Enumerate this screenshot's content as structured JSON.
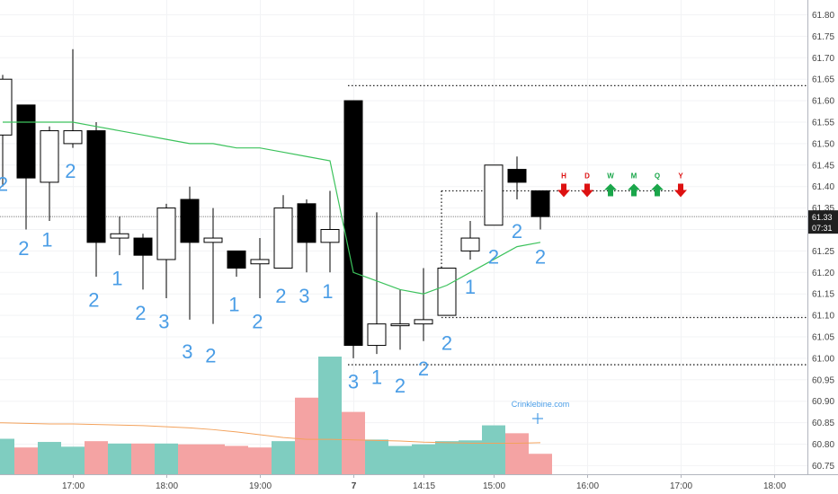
{
  "chart_data": {
    "type": "candlestick",
    "price_range": [
      60.72,
      61.84
    ],
    "y_ticks": [
      61.8,
      61.75,
      61.7,
      61.65,
      61.6,
      61.55,
      61.5,
      61.45,
      61.4,
      61.35,
      61.3,
      61.25,
      61.2,
      61.15,
      61.1,
      61.05,
      61.0,
      60.95,
      60.9,
      60.85,
      60.8,
      60.75
    ],
    "x_ticks": [
      {
        "i": 3,
        "label": "17:00"
      },
      {
        "i": 7,
        "label": "18:00"
      },
      {
        "i": 11,
        "label": "19:00"
      },
      {
        "i": 15,
        "label": "7"
      },
      {
        "i": 18,
        "label": "14:15"
      },
      {
        "i": 21,
        "label": "15:00"
      },
      {
        "i": 25,
        "label": "16:00"
      },
      {
        "i": 29,
        "label": "17:00"
      },
      {
        "i": 33,
        "label": "18:00"
      }
    ],
    "last_price": {
      "value": 61.33,
      "label": "61.33",
      "countdown": "07:31"
    },
    "candles": [
      {
        "o": 61.52,
        "h": 61.66,
        "l": 61.4,
        "c": 61.65
      },
      {
        "o": 61.59,
        "h": 61.59,
        "l": 61.3,
        "c": 61.42
      },
      {
        "o": 61.41,
        "h": 61.54,
        "l": 61.32,
        "c": 61.53
      },
      {
        "o": 61.5,
        "h": 61.72,
        "l": 61.49,
        "c": 61.53
      },
      {
        "o": 61.53,
        "h": 61.55,
        "l": 61.19,
        "c": 61.27
      },
      {
        "o": 61.28,
        "h": 61.33,
        "l": 61.24,
        "c": 61.29
      },
      {
        "o": 61.28,
        "h": 61.29,
        "l": 61.16,
        "c": 61.24
      },
      {
        "o": 61.23,
        "h": 61.36,
        "l": 61.14,
        "c": 61.35
      },
      {
        "o": 61.37,
        "h": 61.4,
        "l": 61.09,
        "c": 61.27
      },
      {
        "o": 61.27,
        "h": 61.35,
        "l": 61.08,
        "c": 61.28
      },
      {
        "o": 61.25,
        "h": 61.25,
        "l": 61.19,
        "c": 61.21
      },
      {
        "o": 61.22,
        "h": 61.28,
        "l": 61.14,
        "c": 61.23
      },
      {
        "o": 61.21,
        "h": 61.38,
        "l": 61.21,
        "c": 61.35
      },
      {
        "o": 61.36,
        "h": 61.37,
        "l": 61.2,
        "c": 61.27
      },
      {
        "o": 61.27,
        "h": 61.39,
        "l": 61.2,
        "c": 61.3
      },
      {
        "o": 61.6,
        "h": 61.6,
        "l": 61.0,
        "c": 61.03
      },
      {
        "o": 61.03,
        "h": 61.34,
        "l": 61.01,
        "c": 61.08
      },
      {
        "o": 61.08,
        "h": 61.16,
        "l": 61.02,
        "c": 61.08
      },
      {
        "o": 61.08,
        "h": 61.21,
        "l": 61.04,
        "c": 61.09
      },
      {
        "o": 61.1,
        "h": 61.21,
        "l": 61.1,
        "c": 61.21
      },
      {
        "o": 61.25,
        "h": 61.32,
        "l": 61.23,
        "c": 61.28
      },
      {
        "o": 61.31,
        "h": 61.45,
        "l": 61.31,
        "c": 61.45
      },
      {
        "o": 61.44,
        "h": 61.47,
        "l": 61.37,
        "c": 61.41
      },
      {
        "o": 61.39,
        "h": 61.39,
        "l": 61.3,
        "c": 61.33
      }
    ],
    "ema": [
      61.55,
      61.55,
      61.55,
      61.55,
      61.54,
      61.53,
      61.52,
      61.51,
      61.5,
      61.5,
      61.49,
      61.49,
      61.48,
      61.47,
      61.46,
      61.2,
      61.18,
      61.16,
      61.15,
      61.17,
      61.2,
      61.23,
      61.26,
      61.27
    ],
    "volumes": [
      {
        "v": 46,
        "up": true
      },
      {
        "v": 35,
        "up": false
      },
      {
        "v": 42,
        "up": true
      },
      {
        "v": 36,
        "up": true
      },
      {
        "v": 43,
        "up": false
      },
      {
        "v": 40,
        "up": true
      },
      {
        "v": 40,
        "up": false
      },
      {
        "v": 40,
        "up": true
      },
      {
        "v": 39,
        "up": false
      },
      {
        "v": 39,
        "up": false
      },
      {
        "v": 37,
        "up": false
      },
      {
        "v": 35,
        "up": false
      },
      {
        "v": 43,
        "up": true
      },
      {
        "v": 98,
        "up": false
      },
      {
        "v": 150,
        "up": true
      },
      {
        "v": 80,
        "up": false
      },
      {
        "v": 45,
        "up": true
      },
      {
        "v": 37,
        "up": true
      },
      {
        "v": 39,
        "up": true
      },
      {
        "v": 43,
        "up": true
      },
      {
        "v": 44,
        "up": true
      },
      {
        "v": 63,
        "up": true
      },
      {
        "v": 53,
        "up": false
      },
      {
        "v": 27,
        "up": false
      }
    ],
    "volume_ma": [
      92,
      91,
      90,
      90,
      89,
      88,
      87,
      85,
      83,
      80,
      76,
      71,
      66,
      63,
      63,
      62,
      61,
      60,
      58,
      57,
      56,
      56,
      56,
      57
    ],
    "levels": [
      {
        "price": 61.635,
        "from": 15,
        "to": 36
      },
      {
        "price": 61.39,
        "from": 19,
        "to": 29
      },
      {
        "price": 61.095,
        "from": 19,
        "to": 36
      },
      {
        "price": 60.985,
        "from": 15,
        "to": 36
      }
    ],
    "counts": [
      {
        "i": 0,
        "y": 61.39,
        "t": "2"
      },
      {
        "i": 0.9,
        "y": 61.24,
        "t": "2"
      },
      {
        "i": 1.9,
        "y": 61.26,
        "t": "1"
      },
      {
        "i": 2.9,
        "y": 61.42,
        "t": "2"
      },
      {
        "i": 3.9,
        "y": 61.12,
        "t": "2"
      },
      {
        "i": 4.9,
        "y": 61.17,
        "t": "1"
      },
      {
        "i": 5.9,
        "y": 61.09,
        "t": "2"
      },
      {
        "i": 6.9,
        "y": 61.07,
        "t": "3"
      },
      {
        "i": 7.9,
        "y": 61.0,
        "t": "3"
      },
      {
        "i": 8.9,
        "y": 60.99,
        "t": "2"
      },
      {
        "i": 9.9,
        "y": 61.11,
        "t": "1"
      },
      {
        "i": 10.9,
        "y": 61.07,
        "t": "2"
      },
      {
        "i": 11.9,
        "y": 61.13,
        "t": "2"
      },
      {
        "i": 12.9,
        "y": 61.13,
        "t": "3"
      },
      {
        "i": 13.9,
        "y": 61.14,
        "t": "1"
      },
      {
        "i": 15,
        "y": 60.93,
        "t": "3"
      },
      {
        "i": 16,
        "y": 60.94,
        "t": "1"
      },
      {
        "i": 17,
        "y": 60.92,
        "t": "2"
      },
      {
        "i": 18,
        "y": 60.96,
        "t": "2"
      },
      {
        "i": 19,
        "y": 61.02,
        "t": "2"
      },
      {
        "i": 20,
        "y": 61.15,
        "t": "1"
      },
      {
        "i": 21,
        "y": 61.22,
        "t": "2"
      },
      {
        "i": 22,
        "y": 61.28,
        "t": "2"
      },
      {
        "i": 23,
        "y": 61.22,
        "t": "2"
      }
    ],
    "period_arrows": [
      {
        "label": "H",
        "dir": "down",
        "color": "#dd1111"
      },
      {
        "label": "D",
        "dir": "down",
        "color": "#dd1111"
      },
      {
        "label": "W",
        "dir": "up",
        "color": "#1aa64a"
      },
      {
        "label": "M",
        "dir": "up",
        "color": "#1aa64a"
      },
      {
        "label": "Q",
        "dir": "up",
        "color": "#1aa64a"
      },
      {
        "label": "Y",
        "dir": "down",
        "color": "#dd1111"
      }
    ],
    "watermark": "Crinklebine.com",
    "colors": {
      "up_body": "#ffffff",
      "down_body": "#000000",
      "wick": "#000000",
      "ema": "#3cc25c",
      "volume_up": "#7fcdc0",
      "volume_down": "#f4a3a3",
      "volume_ma": "#f3a25c",
      "count": "#4a9de6",
      "axis_text": "#444444",
      "badge_bg": "#1f1f1f"
    }
  }
}
